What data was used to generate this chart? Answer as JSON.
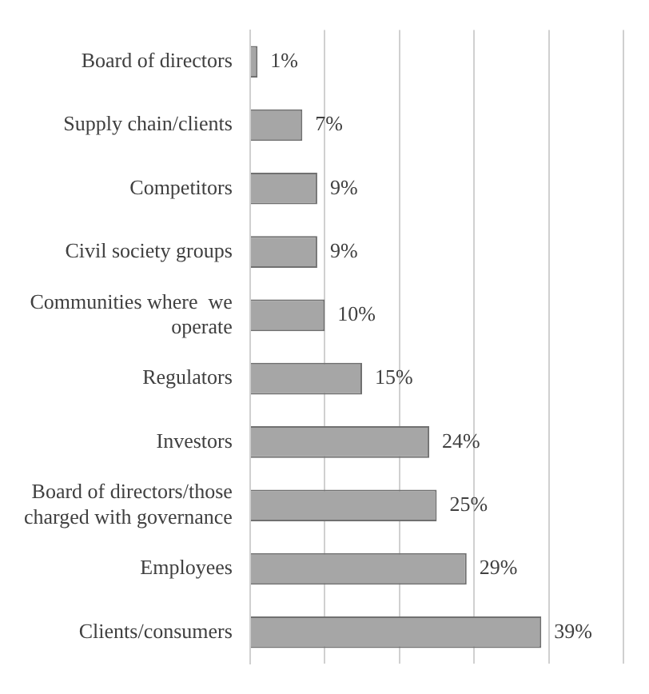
{
  "chart_data": {
    "type": "bar",
    "orientation": "horizontal",
    "categories": [
      "Board of directors",
      "Supply chain/clients",
      "Competitors",
      "Civil society groups",
      "Communities where  we operate",
      "Regulators",
      "Investors",
      "Board of directors/those charged with governance",
      "Employees",
      "Clients/consumers"
    ],
    "values": [
      1,
      7,
      9,
      9,
      10,
      15,
      24,
      25,
      29,
      39
    ],
    "value_labels": [
      "1%",
      "7%",
      "9%",
      "9%",
      "10%",
      "15%",
      "24%",
      "25%",
      "29%",
      "39%"
    ],
    "color": "#a6a6a6",
    "xlim": [
      0,
      50
    ],
    "grid": "x",
    "legend": false,
    "tick_labels": "y"
  }
}
